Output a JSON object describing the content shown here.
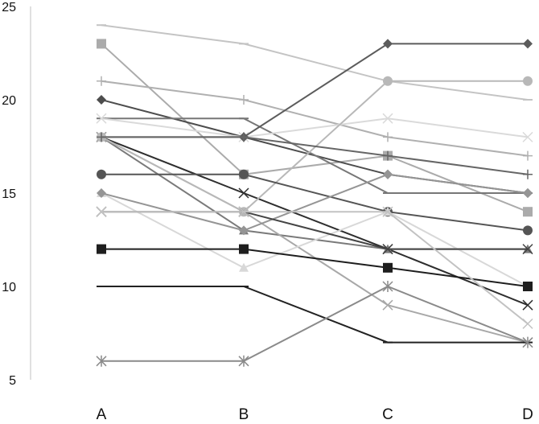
{
  "chart_data": {
    "type": "line",
    "categories": [
      "A",
      "B",
      "C",
      "D"
    ],
    "ylim": [
      5,
      25
    ],
    "yticks": [
      5,
      10,
      15,
      20,
      25
    ],
    "grid": false,
    "legend": "none",
    "series": [
      {
        "values": [
          24,
          23,
          21,
          20
        ],
        "color": "#c4c4c4",
        "marker": "dash"
      },
      {
        "values": [
          23,
          16,
          17,
          14
        ],
        "color": "#ababab",
        "marker": "square"
      },
      {
        "values": [
          21,
          20,
          18,
          17
        ],
        "color": "#b0b0b0",
        "marker": "plus"
      },
      {
        "values": [
          20,
          18,
          16,
          15
        ],
        "color": "#4d4d4d",
        "marker": "diamond"
      },
      {
        "values": [
          19,
          19,
          15,
          15
        ],
        "color": "#777777",
        "marker": "dash"
      },
      {
        "values": [
          19,
          18,
          19,
          18
        ],
        "color": "#dadada",
        "marker": "x"
      },
      {
        "values": [
          18,
          18,
          23,
          23
        ],
        "color": "#5c5c5c",
        "marker": "diamond"
      },
      {
        "values": [
          18,
          15,
          12,
          9
        ],
        "color": "#2e2e2e",
        "marker": "x"
      },
      {
        "values": [
          18,
          13,
          12,
          12
        ],
        "color": "#7a7a7a",
        "marker": "triangle"
      },
      {
        "values": [
          18,
          14,
          9,
          7
        ],
        "color": "#a8a8a8",
        "marker": "x"
      },
      {
        "values": [
          18,
          14,
          21,
          21
        ],
        "color": "#b8b8b8",
        "marker": "circle"
      },
      {
        "values": [
          18,
          18,
          17,
          16
        ],
        "color": "#666666",
        "marker": "plus"
      },
      {
        "values": [
          16,
          16,
          14,
          13
        ],
        "color": "#555555",
        "marker": "circle"
      },
      {
        "values": [
          15,
          11,
          14,
          10
        ],
        "color": "#d8d8d8",
        "marker": "triangle"
      },
      {
        "values": [
          15,
          13,
          16,
          15
        ],
        "color": "#959595",
        "marker": "diamond"
      },
      {
        "values": [
          14,
          14,
          12,
          12
        ],
        "color": "#444444",
        "marker": "x"
      },
      {
        "values": [
          12,
          12,
          11,
          10
        ],
        "color": "#1e1e1e",
        "marker": "square"
      },
      {
        "values": [
          10,
          10,
          7,
          7
        ],
        "color": "#222222",
        "marker": "dash"
      },
      {
        "values": [
          6,
          6,
          10,
          7
        ],
        "color": "#8a8a8a",
        "marker": "asterisk"
      },
      {
        "values": [
          14,
          14,
          14,
          8
        ],
        "color": "#c2c2c2",
        "marker": "x"
      }
    ]
  }
}
